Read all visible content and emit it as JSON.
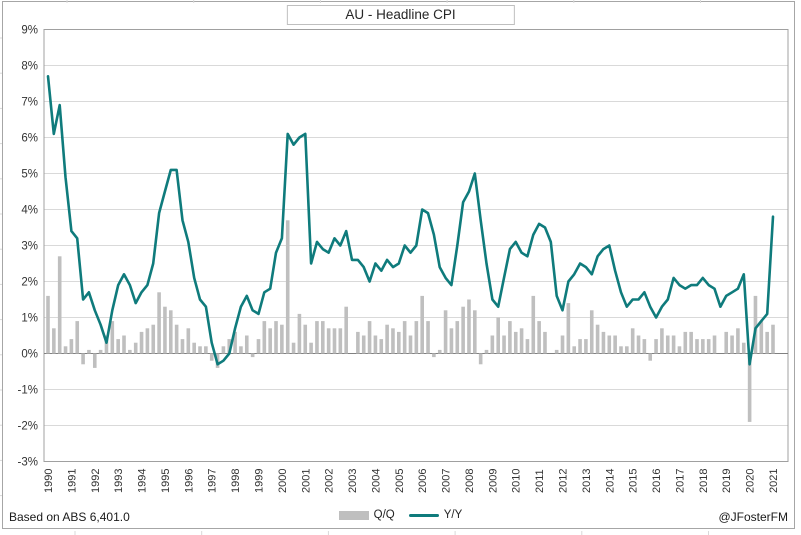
{
  "page": {
    "title": "AU - Headline CPI",
    "footer_left": "Based on ABS 6,401.0",
    "footer_right": "@JFosterFM",
    "legend": {
      "bar_label": "Q/Q",
      "line_label": "Y/Y"
    }
  },
  "colors": {
    "bar": "#bfbfbf",
    "line": "#0f7b7c",
    "gridline": "#d9d9d9",
    "zero_axis": "#808080",
    "plot_border": "#a0a0a0",
    "outer_border": "#a6a6a6",
    "text": "#333333"
  },
  "chart_data": {
    "type": "combo",
    "title": "AU - Headline CPI",
    "frequency": "quarterly",
    "start_period": "1990-Q2",
    "end_period": "2021-Q2",
    "ylim": [
      -3,
      9
    ],
    "grid": true,
    "legend_position": "bottom",
    "y_tick_labels": [
      "9%",
      "8%",
      "7%",
      "6%",
      "5%",
      "4%",
      "3%",
      "2%",
      "1%",
      "0%",
      "-1%",
      "-2%",
      "-3%"
    ],
    "y_tick_values": [
      9,
      8,
      7,
      6,
      5,
      4,
      3,
      2,
      1,
      0,
      -1,
      -2,
      -3
    ],
    "x_tick_labels": [
      "1990",
      "1991",
      "1992",
      "1993",
      "1994",
      "1995",
      "1996",
      "1997",
      "1998",
      "1999",
      "2000",
      "2001",
      "2002",
      "2003",
      "2004",
      "2005",
      "2006",
      "2007",
      "2008",
      "2009",
      "2010",
      "2011",
      "2012",
      "2013",
      "2014",
      "2015",
      "2016",
      "2017",
      "2018",
      "2019",
      "2020",
      "2021"
    ],
    "x_tick_every": 4,
    "series": [
      {
        "name": "Q/Q",
        "type": "bar",
        "color": "#bfbfbf",
        "values": [
          1.6,
          0.7,
          2.7,
          0.2,
          0.4,
          0.9,
          -0.3,
          0.1,
          -0.4,
          0.1,
          0.5,
          0.9,
          0.4,
          0.5,
          0.1,
          0.3,
          0.6,
          0.7,
          0.8,
          1.7,
          1.3,
          1.2,
          0.8,
          0.4,
          0.7,
          0.3,
          0.2,
          0.2,
          -0.2,
          -0.4,
          0.2,
          0.4,
          0.6,
          0.2,
          0.5,
          -0.1,
          0.4,
          0.9,
          0.7,
          0.9,
          0.8,
          3.7,
          0.3,
          1.1,
          0.8,
          0.3,
          0.9,
          0.9,
          0.7,
          0.7,
          0.7,
          1.3,
          0.0,
          0.6,
          0.5,
          0.9,
          0.5,
          0.4,
          0.8,
          0.7,
          0.6,
          0.9,
          0.5,
          0.9,
          1.6,
          0.9,
          -0.1,
          0.1,
          1.2,
          0.7,
          0.9,
          1.3,
          1.5,
          1.2,
          -0.3,
          0.1,
          0.5,
          1.0,
          0.5,
          0.9,
          0.6,
          0.7,
          0.4,
          1.6,
          0.9,
          0.6,
          0.0,
          0.1,
          0.5,
          1.4,
          0.2,
          0.4,
          0.4,
          1.2,
          0.8,
          0.6,
          0.5,
          0.5,
          0.2,
          0.2,
          0.7,
          0.5,
          0.4,
          -0.2,
          0.4,
          0.7,
          0.5,
          0.5,
          0.2,
          0.6,
          0.6,
          0.4,
          0.4,
          0.4,
          0.5,
          0.0,
          0.6,
          0.5,
          0.7,
          0.3,
          -1.9,
          1.6,
          0.9,
          0.6,
          0.8
        ]
      },
      {
        "name": "Y/Y",
        "type": "line",
        "color": "#0f7b7c",
        "values": [
          7.7,
          6.1,
          6.9,
          4.9,
          3.4,
          3.2,
          1.5,
          1.7,
          1.2,
          0.8,
          0.3,
          1.2,
          1.9,
          2.2,
          1.9,
          1.4,
          1.7,
          1.9,
          2.5,
          3.9,
          4.5,
          5.1,
          5.1,
          3.7,
          3.1,
          2.1,
          1.5,
          1.3,
          0.3,
          -0.3,
          -0.2,
          0.0,
          0.7,
          1.3,
          1.6,
          1.2,
          1.1,
          1.7,
          1.8,
          2.8,
          3.2,
          6.1,
          5.8,
          6.0,
          6.1,
          2.5,
          3.1,
          2.9,
          2.8,
          3.2,
          3.0,
          3.4,
          2.6,
          2.6,
          2.4,
          2.0,
          2.5,
          2.3,
          2.6,
          2.4,
          2.5,
          3.0,
          2.8,
          3.0,
          4.0,
          3.9,
          3.3,
          2.4,
          2.1,
          1.9,
          3.0,
          4.2,
          4.5,
          5.0,
          3.7,
          2.5,
          1.5,
          1.3,
          2.1,
          2.9,
          3.1,
          2.8,
          2.7,
          3.3,
          3.6,
          3.5,
          3.1,
          1.6,
          1.2,
          2.0,
          2.2,
          2.5,
          2.4,
          2.2,
          2.7,
          2.9,
          3.0,
          2.3,
          1.7,
          1.3,
          1.5,
          1.5,
          1.7,
          1.3,
          1.0,
          1.3,
          1.5,
          2.1,
          1.9,
          1.8,
          1.9,
          1.9,
          2.1,
          1.9,
          1.8,
          1.3,
          1.6,
          1.7,
          1.8,
          2.2,
          -0.3,
          0.7,
          0.9,
          1.1,
          3.8
        ]
      }
    ]
  }
}
